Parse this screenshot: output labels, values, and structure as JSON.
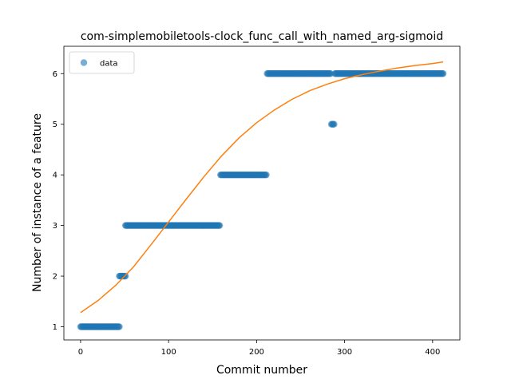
{
  "chart_data": {
    "type": "scatter",
    "title": "com-simplemobiletools-clock_func_call_with_named_arg-sigmoid",
    "xlabel": "Commit number",
    "ylabel": "Number of instance of a feature",
    "xlim": [
      -19,
      431
    ],
    "ylim": [
      0.74,
      6.54
    ],
    "xticks": [
      0,
      100,
      200,
      300,
      400
    ],
    "yticks": [
      1,
      2,
      3,
      4,
      5,
      6
    ],
    "legend": {
      "position": "top-left",
      "entries": [
        "data"
      ]
    },
    "grid": false,
    "series": [
      {
        "name": "data",
        "kind": "points",
        "color": "#1f77b4",
        "segments": [
          {
            "x_start": 0,
            "x_end": 44,
            "y": 1
          },
          {
            "x_start": 44,
            "x_end": 51,
            "y": 2
          },
          {
            "x_start": 51,
            "x_end": 158,
            "y": 3
          },
          {
            "x_start": 159,
            "x_end": 211,
            "y": 4
          },
          {
            "x_start": 212,
            "x_end": 284,
            "y": 6
          },
          {
            "x_start": 285,
            "x_end": 288,
            "y": 5
          },
          {
            "x_start": 289,
            "x_end": 412,
            "y": 6
          }
        ]
      },
      {
        "kind": "fit-line",
        "color": "#ff7f0e",
        "x": [
          0,
          20,
          40,
          60,
          80,
          100,
          120,
          140,
          160,
          180,
          200,
          220,
          240,
          260,
          280,
          300,
          320,
          340,
          360,
          380,
          400,
          412
        ],
        "y": [
          1.28,
          1.52,
          1.82,
          2.18,
          2.62,
          3.07,
          3.52,
          3.96,
          4.37,
          4.73,
          5.03,
          5.28,
          5.49,
          5.66,
          5.79,
          5.9,
          5.98,
          6.05,
          6.11,
          6.16,
          6.2,
          6.23
        ]
      }
    ]
  }
}
